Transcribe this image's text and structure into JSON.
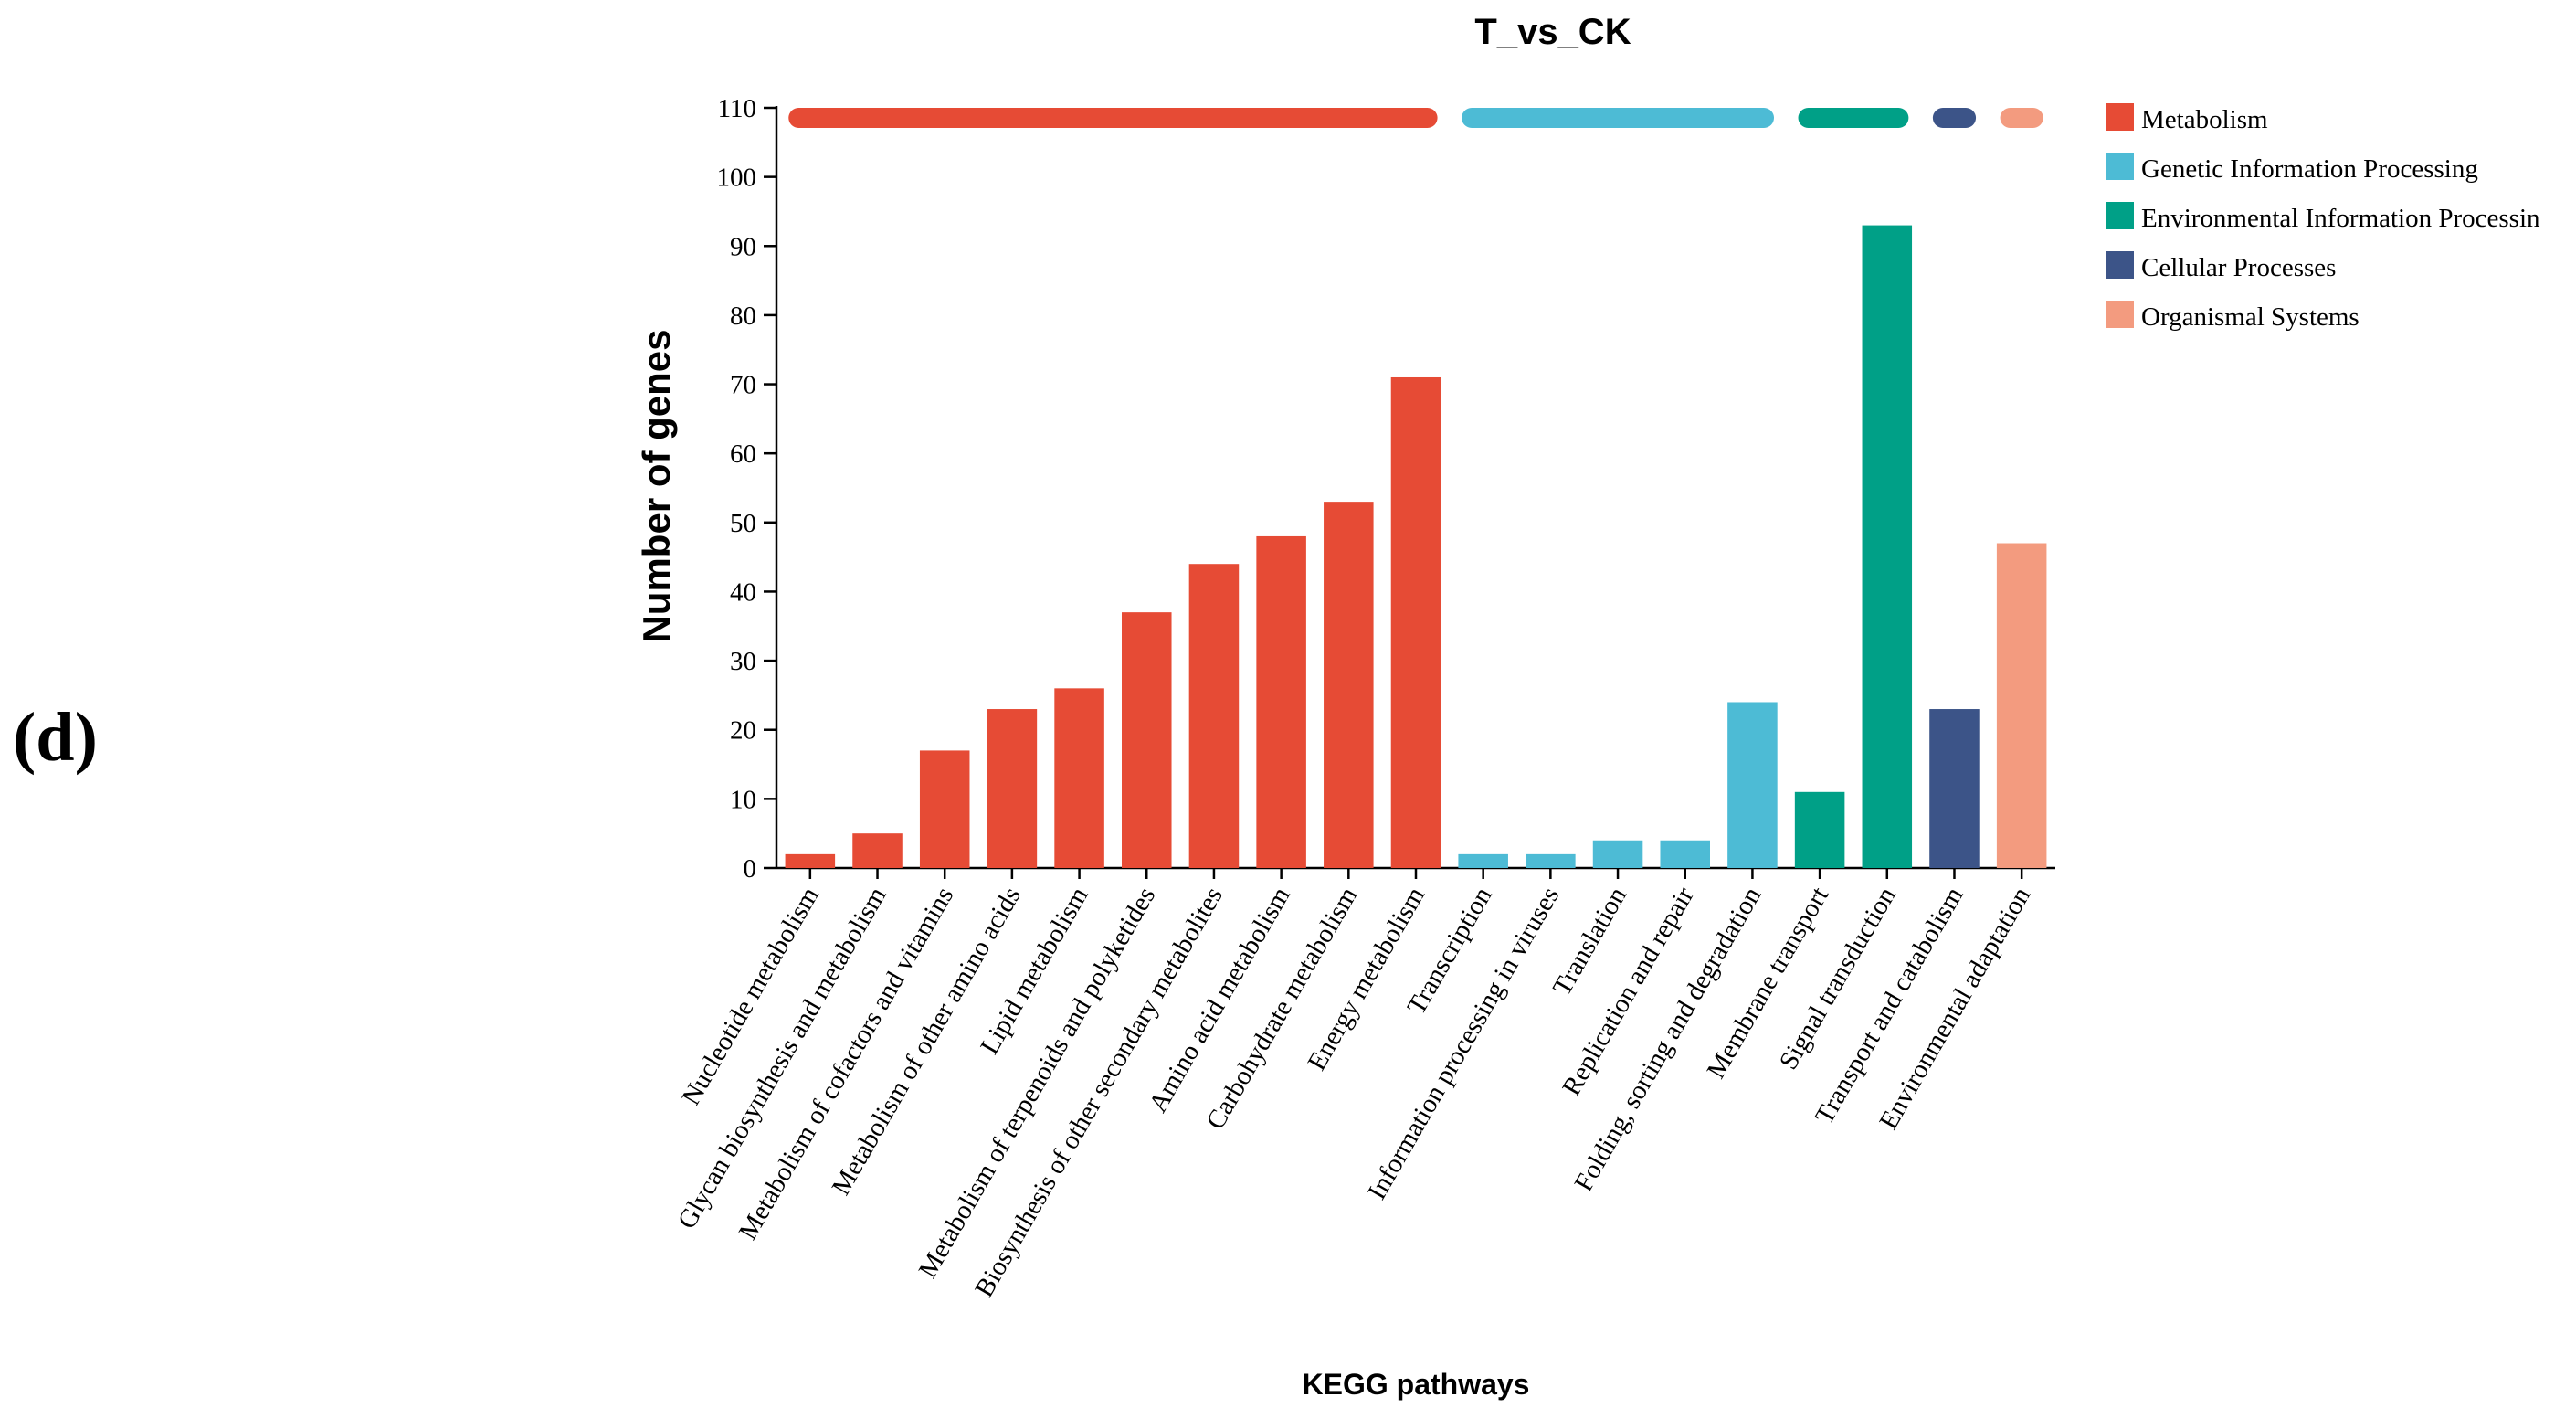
{
  "panel_label": "(d)",
  "chart_data": {
    "type": "bar",
    "title": "T_vs_CK",
    "xlabel": "KEGG pathways",
    "ylabel": "Number of genes",
    "ylim": [
      0,
      110
    ],
    "yticks": [
      0,
      10,
      20,
      30,
      40,
      50,
      60,
      70,
      80,
      90,
      100,
      110
    ],
    "grid": false,
    "legend_position": "top-right",
    "groups": [
      {
        "name": "Metabolism",
        "color": "#E64B35"
      },
      {
        "name": "Genetic Information Processing",
        "color": "#4DBBD5"
      },
      {
        "name": "Environmental Information Processin",
        "color": "#00A087"
      },
      {
        "name": "Cellular Processes",
        "color": "#3C5488"
      },
      {
        "name": "Organismal Systems",
        "color": "#F39B7F"
      }
    ],
    "categories": [
      "Nucleotide metabolism",
      "Glycan biosynthesis and metabolism",
      "Metabolism of cofactors and vitamins",
      "Metabolism of other amino acids",
      "Lipid metabolism",
      "Metabolism of terpenoids and polyketides",
      "Biosynthesis of other secondary metabolites",
      "Amino acid metabolism",
      "Carbohydrate metabolism",
      "Energy metabolism",
      "Transcription",
      "Information processing in viruses",
      "Translation",
      "Replication and repair",
      "Folding, sorting and degradation",
      "Membrane transport",
      "Signal transduction",
      "Transport and catabolism",
      "Environmental adaptation"
    ],
    "values": [
      2,
      5,
      17,
      23,
      26,
      37,
      44,
      48,
      53,
      71,
      2,
      2,
      4,
      4,
      24,
      11,
      93,
      23,
      47
    ],
    "group_index": [
      0,
      0,
      0,
      0,
      0,
      0,
      0,
      0,
      0,
      0,
      1,
      1,
      1,
      1,
      1,
      2,
      2,
      3,
      4
    ]
  }
}
